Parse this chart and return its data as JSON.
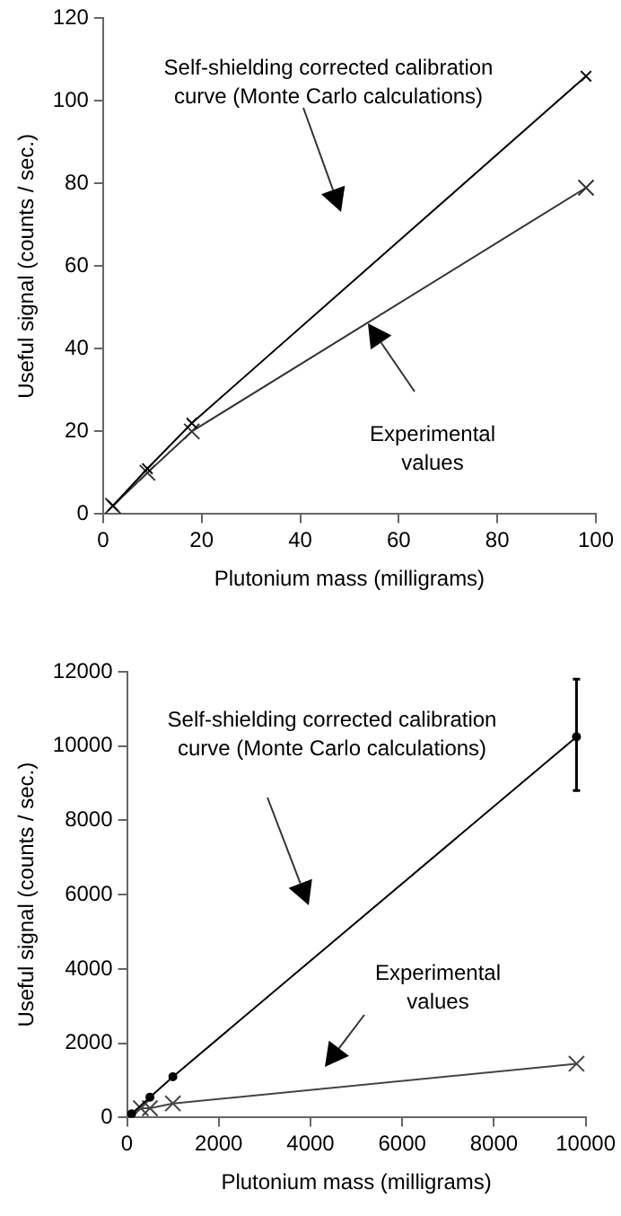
{
  "chart_data": [
    {
      "type": "line",
      "xlabel": "Plutonium mass (milligrams)",
      "ylabel": "Useful signal (counts / sec.)",
      "xlim": [
        0,
        100
      ],
      "xticks": [
        0,
        20,
        40,
        60,
        80,
        100
      ],
      "ylim": [
        0,
        120
      ],
      "yticks": [
        0,
        20,
        40,
        60,
        80,
        100,
        120
      ],
      "grid": false,
      "legend": false,
      "line_style": "solid",
      "annotations": [
        "Self-shielding corrected calibration\ncurve (Monte Carlo calculations)",
        "Experimental\nvalues"
      ],
      "series": [
        {
          "color": "#000000",
          "marker": "cross",
          "x": [
            2,
            9,
            18,
            98
          ],
          "values": [
            2,
            11,
            22,
            106
          ]
        },
        {
          "color": "#333333",
          "marker": "cross",
          "x": [
            2,
            9,
            18,
            98
          ],
          "values": [
            2,
            10,
            20,
            79
          ]
        }
      ]
    },
    {
      "type": "line",
      "xlabel": "Plutonium mass (milligrams)",
      "ylabel": "Useful signal (counts / sec.)",
      "xlim": [
        0,
        10000
      ],
      "xticks": [
        0,
        2000,
        4000,
        6000,
        8000,
        10000
      ],
      "ylim": [
        0,
        12000
      ],
      "yticks": [
        0,
        2000,
        4000,
        6000,
        8000,
        10000,
        12000
      ],
      "grid": false,
      "legend": false,
      "line_style": "solid",
      "annotations": [
        "Self-shielding corrected calibration\ncurve (Monte Carlo calculations)",
        "Experimental\nvalues"
      ],
      "series": [
        {
          "color": "#000000",
          "marker": "circle",
          "x": [
            100,
            500,
            1000,
            9800
          ],
          "values": [
            100,
            550,
            1100,
            10250
          ],
          "errors": [
            null,
            null,
            null,
            [
              8800,
              11800
            ]
          ]
        },
        {
          "color": "#444444",
          "marker": "cross",
          "x": [
            100,
            300,
            500,
            1000,
            9800
          ],
          "values": [
            50,
            250,
            250,
            380,
            1450
          ]
        }
      ]
    }
  ]
}
